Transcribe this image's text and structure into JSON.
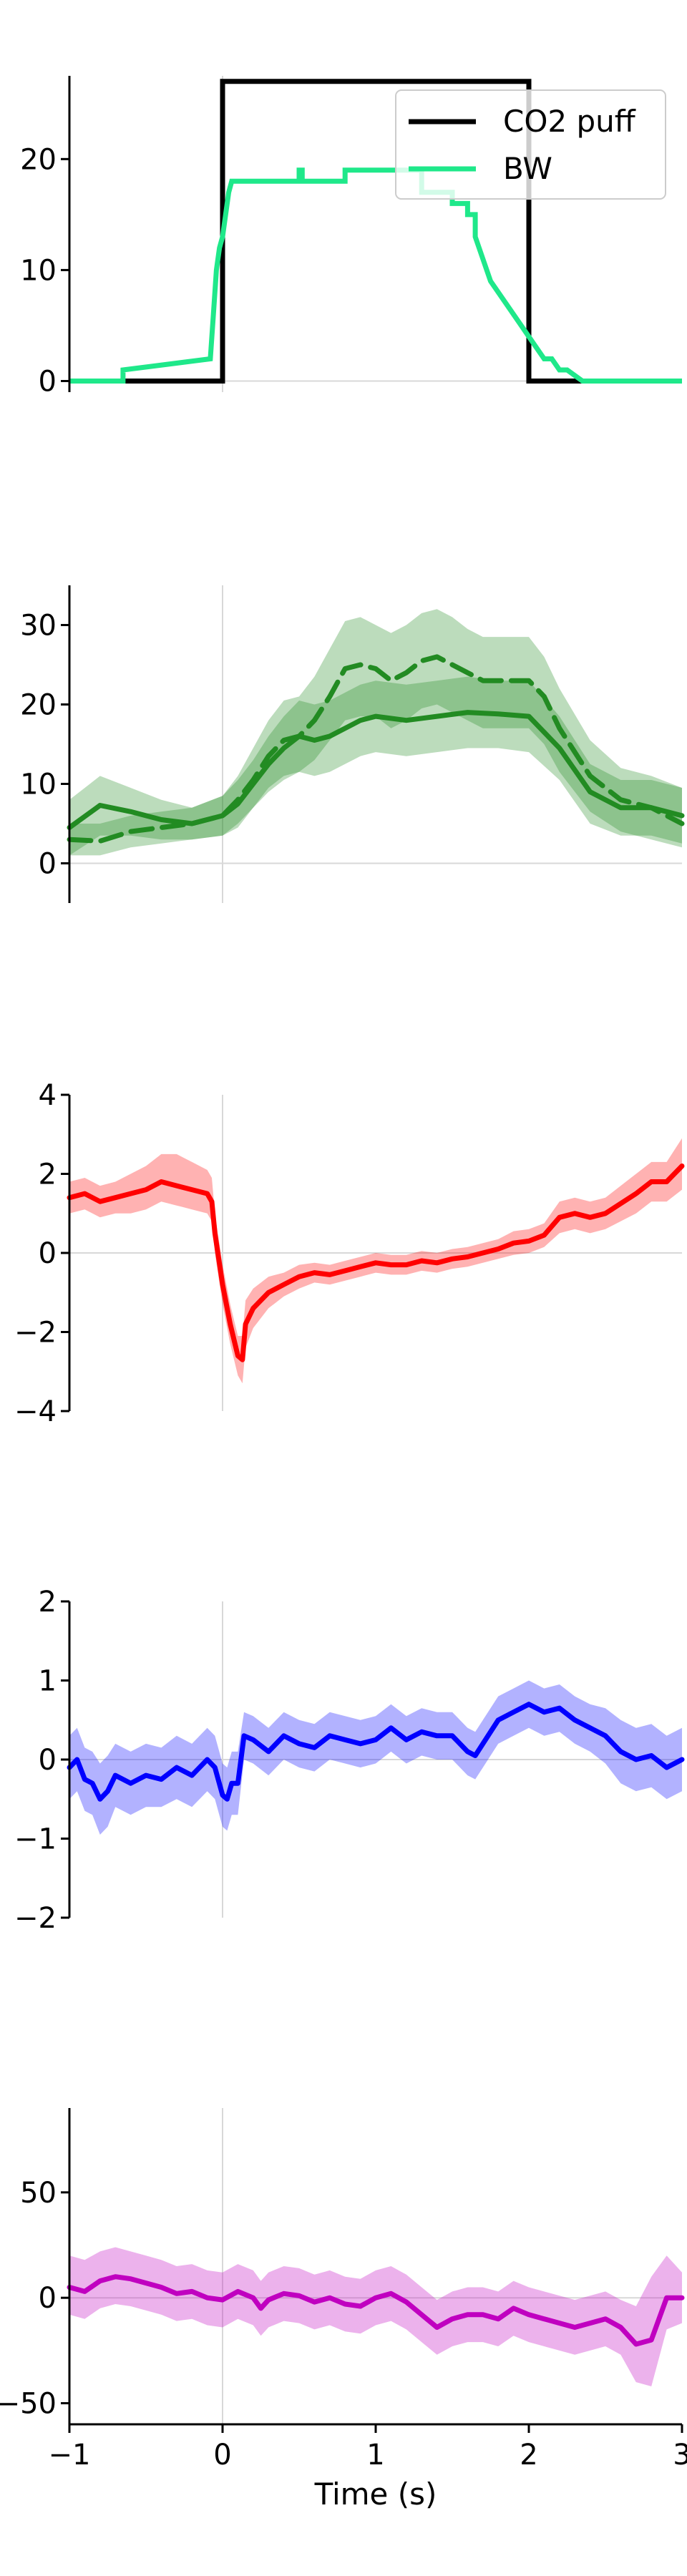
{
  "chart_data": [
    {
      "type": "line",
      "xlim": [
        -1,
        3
      ],
      "ylim": [
        -1,
        27.5
      ],
      "x_ticks": [
        -1,
        0,
        1,
        2,
        3
      ],
      "y_ticks": [
        0,
        10,
        20
      ],
      "y_tick_labels": [
        "0",
        "10",
        "20"
      ],
      "show_x_tick_labels": false,
      "xlabel": "",
      "ylabel": "",
      "legend_location": "upper right",
      "series": [
        {
          "name": "CO2 puff",
          "color": "#000000",
          "style": "step",
          "x": [
            -0.65,
            0.0,
            0.0,
            2.0,
            2.0,
            2.5
          ],
          "y": [
            0,
            0,
            27,
            27,
            0,
            0
          ]
        },
        {
          "name": "BW",
          "color": "#1fe88a",
          "style": "step",
          "x": [
            -1.0,
            -0.65,
            -0.65,
            -0.08,
            -0.06,
            -0.04,
            -0.02,
            0.0,
            0.02,
            0.04,
            0.06,
            0.08,
            0.1,
            0.5,
            0.5,
            0.52,
            0.52,
            0.8,
            0.8,
            1.3,
            1.3,
            1.5,
            1.5,
            1.6,
            1.6,
            1.65,
            1.65,
            1.7,
            1.75,
            1.8,
            1.85,
            1.9,
            1.95,
            2.0,
            2.05,
            2.1,
            2.15,
            2.2,
            2.25,
            2.35,
            2.55,
            3.0
          ],
          "y": [
            0,
            0,
            1,
            2,
            6,
            10,
            12,
            13,
            15,
            17,
            18,
            18,
            18,
            18,
            19,
            19,
            18,
            18,
            19,
            19,
            17,
            17,
            16,
            16,
            15,
            15,
            13,
            11,
            9,
            8,
            7,
            6,
            5,
            4,
            3,
            2,
            2,
            1,
            1,
            0,
            0,
            0
          ]
        }
      ]
    },
    {
      "type": "line",
      "xlim": [
        -1,
        3
      ],
      "ylim": [
        -5,
        35
      ],
      "x_ticks": [
        -1,
        0,
        1,
        2,
        3
      ],
      "y_ticks": [
        0,
        10,
        20,
        30
      ],
      "y_tick_labels": [
        "0",
        "10",
        "20",
        "30"
      ],
      "show_x_tick_labels": false,
      "xlabel": "",
      "ylabel": "",
      "series": [
        {
          "color": "#228b22",
          "style": "solid",
          "x": [
            -1.0,
            -0.8,
            -0.6,
            -0.4,
            -0.2,
            0.0,
            0.1,
            0.2,
            0.3,
            0.4,
            0.5,
            0.6,
            0.7,
            0.8,
            0.9,
            1.0,
            1.2,
            1.4,
            1.6,
            1.8,
            2.0,
            2.2,
            2.4,
            2.6,
            2.8,
            3.0
          ],
          "y": [
            4.5,
            7.3,
            6.5,
            5.5,
            5.0,
            6.0,
            7.5,
            10,
            12.5,
            14.5,
            16,
            15.5,
            16,
            17,
            18,
            18.5,
            18,
            18.5,
            19,
            18.8,
            18.5,
            14.5,
            9,
            7,
            7,
            6
          ],
          "band_lower": [
            1,
            3.5,
            3.5,
            3,
            3,
            3.5,
            4.5,
            7,
            9,
            10.5,
            11.5,
            11,
            11.5,
            12.5,
            13.5,
            14,
            13.5,
            14,
            14.5,
            14.5,
            14,
            10.5,
            5,
            3.5,
            3.5,
            2.5
          ],
          "band_upper": [
            8,
            11,
            9.5,
            8,
            7,
            8.5,
            10.5,
            13,
            16,
            18.5,
            20.5,
            20,
            20.5,
            21.5,
            22.5,
            23,
            22.5,
            23,
            23.5,
            23,
            23,
            18.5,
            12.5,
            10.5,
            10.5,
            9.5
          ]
        },
        {
          "color": "#228b22",
          "style": "dashed",
          "x": [
            -1.0,
            -0.8,
            -0.6,
            -0.4,
            -0.2,
            0.0,
            0.1,
            0.2,
            0.3,
            0.4,
            0.5,
            0.6,
            0.7,
            0.8,
            0.9,
            1.0,
            1.1,
            1.2,
            1.3,
            1.4,
            1.5,
            1.6,
            1.7,
            1.8,
            1.9,
            2.0,
            2.1,
            2.2,
            2.4,
            2.6,
            2.8,
            3.0
          ],
          "y": [
            3,
            2.8,
            4,
            4.5,
            5,
            6,
            8,
            10.5,
            13.5,
            15.5,
            16,
            18,
            21,
            24.5,
            25,
            24.5,
            23,
            24,
            25.5,
            26,
            25,
            24,
            23,
            23,
            23,
            23,
            21,
            17,
            11,
            8,
            7,
            5
          ],
          "band_lower": [
            1,
            1,
            2,
            2.5,
            3,
            3.5,
            5,
            7,
            9.5,
            11,
            11.5,
            13,
            15.5,
            18,
            18.5,
            18.5,
            17,
            18,
            19.5,
            20,
            19,
            18,
            17,
            17,
            17,
            17,
            15,
            11.5,
            6.5,
            4,
            3,
            2
          ],
          "band_upper": [
            5,
            5,
            6,
            6.5,
            7,
            8.5,
            11,
            14.5,
            18,
            20.5,
            21,
            23.5,
            27,
            30.5,
            31,
            30,
            29,
            30,
            31.5,
            32,
            31,
            29.5,
            28.5,
            28.5,
            28.5,
            28.5,
            26,
            22,
            15.5,
            12,
            11,
            9.5
          ]
        }
      ]
    },
    {
      "type": "line",
      "xlim": [
        -1,
        3
      ],
      "ylim": [
        -4,
        4
      ],
      "x_ticks": [
        -1,
        0,
        1,
        2,
        3
      ],
      "y_ticks": [
        -4,
        -2,
        0,
        2,
        4
      ],
      "y_tick_labels": [
        "−4",
        "−2",
        "0",
        "2",
        "4"
      ],
      "show_x_tick_labels": false,
      "xlabel": "",
      "ylabel": "",
      "series": [
        {
          "color": "#ff0000",
          "style": "solid",
          "x": [
            -1.0,
            -0.9,
            -0.8,
            -0.7,
            -0.6,
            -0.5,
            -0.4,
            -0.3,
            -0.2,
            -0.1,
            -0.07,
            -0.05,
            0.0,
            0.05,
            0.1,
            0.13,
            0.15,
            0.2,
            0.3,
            0.4,
            0.5,
            0.6,
            0.7,
            0.8,
            0.9,
            1.0,
            1.1,
            1.2,
            1.3,
            1.4,
            1.5,
            1.6,
            1.7,
            1.8,
            1.9,
            2.0,
            2.1,
            2.2,
            2.3,
            2.4,
            2.5,
            2.6,
            2.7,
            2.8,
            2.9,
            3.0
          ],
          "y": [
            1.4,
            1.5,
            1.3,
            1.4,
            1.5,
            1.6,
            1.8,
            1.7,
            1.6,
            1.5,
            1.3,
            0.5,
            -0.8,
            -1.8,
            -2.6,
            -2.7,
            -1.8,
            -1.4,
            -1.0,
            -0.8,
            -0.6,
            -0.5,
            -0.55,
            -0.45,
            -0.35,
            -0.25,
            -0.3,
            -0.3,
            -0.2,
            -0.25,
            -0.15,
            -0.1,
            0.0,
            0.1,
            0.25,
            0.3,
            0.45,
            0.9,
            1.0,
            0.9,
            1.0,
            1.25,
            1.5,
            1.8,
            1.8,
            2.2
          ],
          "band_lower": [
            1.0,
            1.1,
            0.9,
            1.0,
            1.0,
            1.1,
            1.3,
            1.2,
            1.1,
            1.0,
            0.8,
            0.0,
            -1.3,
            -2.3,
            -3.1,
            -3.3,
            -2.4,
            -1.9,
            -1.4,
            -1.1,
            -0.9,
            -0.75,
            -0.8,
            -0.7,
            -0.6,
            -0.5,
            -0.55,
            -0.55,
            -0.45,
            -0.5,
            -0.4,
            -0.35,
            -0.25,
            -0.15,
            -0.05,
            0.0,
            0.15,
            0.5,
            0.6,
            0.5,
            0.6,
            0.8,
            1.0,
            1.3,
            1.3,
            1.6
          ],
          "band_upper": [
            1.8,
            1.9,
            1.7,
            1.8,
            2.0,
            2.2,
            2.5,
            2.5,
            2.3,
            2.1,
            1.9,
            1.0,
            -0.3,
            -1.3,
            -2.1,
            -2.1,
            -1.2,
            -0.9,
            -0.6,
            -0.5,
            -0.3,
            -0.25,
            -0.3,
            -0.2,
            -0.1,
            0.0,
            -0.05,
            -0.05,
            0.05,
            0.0,
            0.1,
            0.15,
            0.25,
            0.35,
            0.55,
            0.6,
            0.75,
            1.3,
            1.4,
            1.3,
            1.4,
            1.7,
            2.0,
            2.3,
            2.3,
            2.9
          ]
        }
      ]
    },
    {
      "type": "line",
      "xlim": [
        -1,
        3
      ],
      "ylim": [
        -2,
        2
      ],
      "x_ticks": [
        -1,
        0,
        1,
        2,
        3
      ],
      "y_ticks": [
        -2,
        -1,
        0,
        1,
        2
      ],
      "y_tick_labels": [
        "−2",
        "−1",
        "0",
        "1",
        "2"
      ],
      "show_x_tick_labels": false,
      "xlabel": "",
      "ylabel": "",
      "series": [
        {
          "color": "#0000ff",
          "style": "solid",
          "x": [
            -1.0,
            -0.95,
            -0.9,
            -0.85,
            -0.8,
            -0.75,
            -0.7,
            -0.6,
            -0.5,
            -0.4,
            -0.3,
            -0.2,
            -0.1,
            -0.05,
            0.0,
            0.03,
            0.06,
            0.1,
            0.12,
            0.14,
            0.2,
            0.3,
            0.4,
            0.5,
            0.6,
            0.7,
            0.8,
            0.9,
            1.0,
            1.1,
            1.2,
            1.3,
            1.4,
            1.5,
            1.6,
            1.65,
            1.7,
            1.8,
            1.9,
            2.0,
            2.1,
            2.2,
            2.3,
            2.4,
            2.5,
            2.6,
            2.7,
            2.8,
            2.9,
            3.0
          ],
          "y": [
            -0.1,
            0.0,
            -0.25,
            -0.3,
            -0.5,
            -0.4,
            -0.2,
            -0.3,
            -0.2,
            -0.25,
            -0.1,
            -0.2,
            0.0,
            -0.1,
            -0.45,
            -0.5,
            -0.3,
            -0.3,
            0.0,
            0.3,
            0.25,
            0.1,
            0.3,
            0.2,
            0.15,
            0.3,
            0.25,
            0.2,
            0.25,
            0.4,
            0.25,
            0.35,
            0.3,
            0.3,
            0.1,
            0.05,
            0.2,
            0.5,
            0.6,
            0.7,
            0.6,
            0.65,
            0.5,
            0.4,
            0.3,
            0.1,
            0.0,
            0.05,
            -0.1,
            0.0
          ],
          "band_lower": [
            -0.5,
            -0.4,
            -0.65,
            -0.7,
            -0.95,
            -0.85,
            -0.6,
            -0.7,
            -0.6,
            -0.6,
            -0.5,
            -0.6,
            -0.4,
            -0.5,
            -0.85,
            -0.9,
            -0.7,
            -0.7,
            -0.35,
            0.0,
            -0.05,
            -0.2,
            0.0,
            -0.1,
            -0.15,
            0.0,
            -0.05,
            -0.1,
            -0.05,
            0.1,
            -0.05,
            0.05,
            0.0,
            0.0,
            -0.2,
            -0.25,
            -0.1,
            0.2,
            0.3,
            0.4,
            0.3,
            0.35,
            0.2,
            0.1,
            -0.05,
            -0.3,
            -0.4,
            -0.35,
            -0.5,
            -0.4
          ],
          "band_upper": [
            0.3,
            0.4,
            0.15,
            0.1,
            -0.05,
            0.05,
            0.2,
            0.1,
            0.2,
            0.15,
            0.3,
            0.2,
            0.4,
            0.3,
            -0.05,
            -0.1,
            0.1,
            0.1,
            0.35,
            0.6,
            0.55,
            0.4,
            0.6,
            0.5,
            0.45,
            0.6,
            0.55,
            0.5,
            0.55,
            0.7,
            0.55,
            0.65,
            0.6,
            0.6,
            0.4,
            0.35,
            0.5,
            0.8,
            0.9,
            1.0,
            0.9,
            0.95,
            0.8,
            0.7,
            0.65,
            0.5,
            0.4,
            0.45,
            0.3,
            0.4
          ]
        }
      ]
    },
    {
      "type": "line",
      "xlim": [
        -1,
        3
      ],
      "ylim": [
        -60,
        90
      ],
      "x_ticks": [
        -1,
        0,
        1,
        2,
        3
      ],
      "y_ticks": [
        -50,
        0,
        50
      ],
      "y_tick_labels": [
        "−50",
        "0",
        "50"
      ],
      "x_tick_labels": [
        "−1",
        "0",
        "1",
        "2",
        "3"
      ],
      "show_x_tick_labels": true,
      "xlabel": "Time (s)",
      "ylabel": "",
      "series": [
        {
          "color": "#c000c0",
          "style": "solid",
          "x": [
            -1.0,
            -0.9,
            -0.8,
            -0.7,
            -0.6,
            -0.5,
            -0.4,
            -0.3,
            -0.2,
            -0.1,
            0.0,
            0.1,
            0.2,
            0.25,
            0.3,
            0.4,
            0.5,
            0.6,
            0.7,
            0.8,
            0.9,
            1.0,
            1.1,
            1.2,
            1.3,
            1.4,
            1.5,
            1.6,
            1.7,
            1.8,
            1.9,
            2.0,
            2.1,
            2.2,
            2.3,
            2.4,
            2.5,
            2.6,
            2.7,
            2.8,
            2.9,
            3.0
          ],
          "y": [
            5,
            3,
            8,
            10,
            9,
            7,
            5,
            2,
            3,
            0,
            -1,
            3,
            0,
            -5,
            -1,
            2,
            1,
            -2,
            0,
            -3,
            -4,
            0,
            2,
            -2,
            -8,
            -14,
            -10,
            -8,
            -8,
            -10,
            -5,
            -8,
            -10,
            -12,
            -14,
            -12,
            -10,
            -14,
            -22,
            -20,
            0,
            0
          ],
          "band_lower": [
            -8,
            -10,
            -5,
            -3,
            -4,
            -6,
            -8,
            -11,
            -10,
            -13,
            -14,
            -10,
            -13,
            -18,
            -14,
            -11,
            -12,
            -15,
            -13,
            -16,
            -17,
            -13,
            -11,
            -15,
            -21,
            -27,
            -23,
            -21,
            -21,
            -23,
            -18,
            -21,
            -23,
            -25,
            -27,
            -25,
            -23,
            -27,
            -40,
            -42,
            -15,
            -12
          ],
          "band_upper": [
            20,
            18,
            22,
            24,
            22,
            20,
            18,
            15,
            16,
            13,
            12,
            16,
            13,
            8,
            12,
            15,
            14,
            11,
            13,
            10,
            9,
            13,
            15,
            11,
            5,
            -1,
            3,
            5,
            5,
            3,
            8,
            5,
            3,
            1,
            -1,
            1,
            3,
            -1,
            -4,
            10,
            20,
            12
          ]
        }
      ]
    }
  ]
}
